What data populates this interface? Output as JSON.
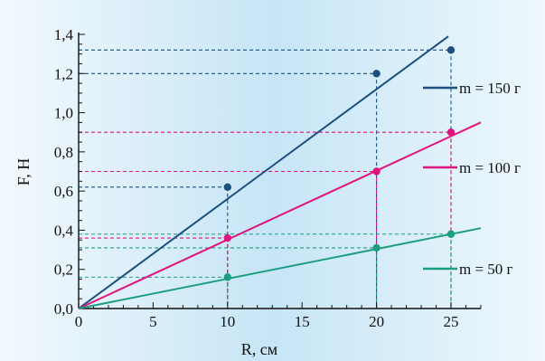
{
  "chart_data": {
    "type": "scatter",
    "xlabel": "R, см",
    "ylabel": "F, Н",
    "xlim": [
      0,
      27
    ],
    "ylim": [
      0,
      1.4
    ],
    "xticks": [
      0,
      5,
      10,
      15,
      20,
      25
    ],
    "yticks": [
      0,
      0.2,
      0.4,
      0.6,
      0.8,
      1.0,
      1.2,
      1.4
    ],
    "xtick_labels": [
      "0",
      "5",
      "10",
      "15",
      "20",
      "25"
    ],
    "ytick_labels": [
      "0,0",
      "0,2",
      "0,4",
      "0,6",
      "0,8",
      "1,0",
      "1,2",
      "1,4"
    ],
    "legend_position": "right",
    "series": [
      {
        "key": "m150",
        "name": "m = 150 г",
        "color": "#1b4f80",
        "x": [
          10,
          20,
          25
        ],
        "y": [
          0.62,
          1.2,
          1.32
        ],
        "fit_slope": 0.056
      },
      {
        "key": "m100",
        "name": "m = 100 г",
        "color": "#e0137f",
        "x": [
          10,
          20,
          25
        ],
        "y": [
          0.36,
          0.7,
          0.9
        ],
        "fit_slope": 0.0352
      },
      {
        "key": "m50",
        "name": "m = 50 г",
        "color": "#1e9e80",
        "x": [
          10,
          20,
          25
        ],
        "y": [
          0.16,
          0.31,
          0.38
        ],
        "fit_slope": 0.0152
      }
    ]
  }
}
